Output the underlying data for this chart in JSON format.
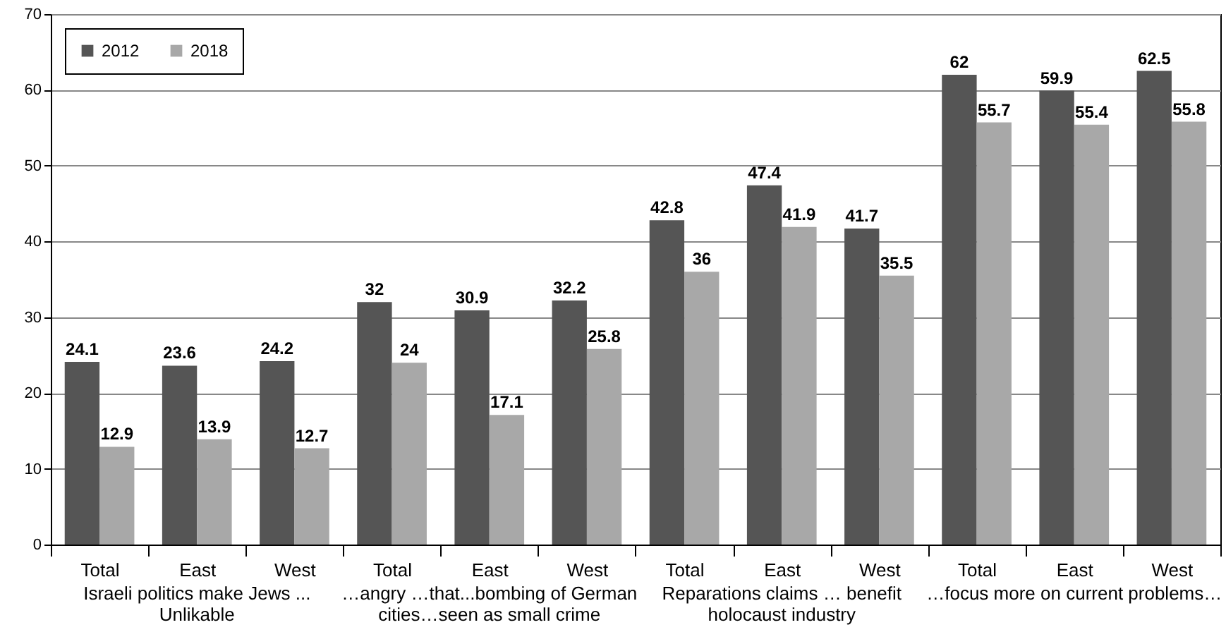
{
  "chart_data": {
    "type": "bar",
    "categories": [
      "Total",
      "East",
      "West",
      "Total",
      "East",
      "West",
      "Total",
      "East",
      "West",
      "Total",
      "East",
      "West"
    ],
    "series": [
      {
        "name": "2012",
        "color": "#555555",
        "values": [
          24.1,
          23.6,
          24.2,
          32,
          30.9,
          32.2,
          42.8,
          47.4,
          41.7,
          62,
          59.9,
          62.5
        ]
      },
      {
        "name": "2018",
        "color": "#a8a8a8",
        "values": [
          12.9,
          13.9,
          12.7,
          24,
          17.1,
          25.8,
          36,
          41.9,
          35.5,
          55.7,
          55.4,
          55.8
        ]
      }
    ],
    "annotations": [
      "Israeli politics make Jews ... Unlikable",
      "…angry …that...bombing of German cities…seen as small crime",
      "Reparations claims … benefit holocaust industry",
      "…focus more on current problems…"
    ],
    "ylim": [
      0,
      70
    ],
    "yticks": [
      0,
      10,
      20,
      30,
      40,
      50,
      60,
      70
    ],
    "grid": "y",
    "legend": "top left",
    "data_labels": true
  }
}
